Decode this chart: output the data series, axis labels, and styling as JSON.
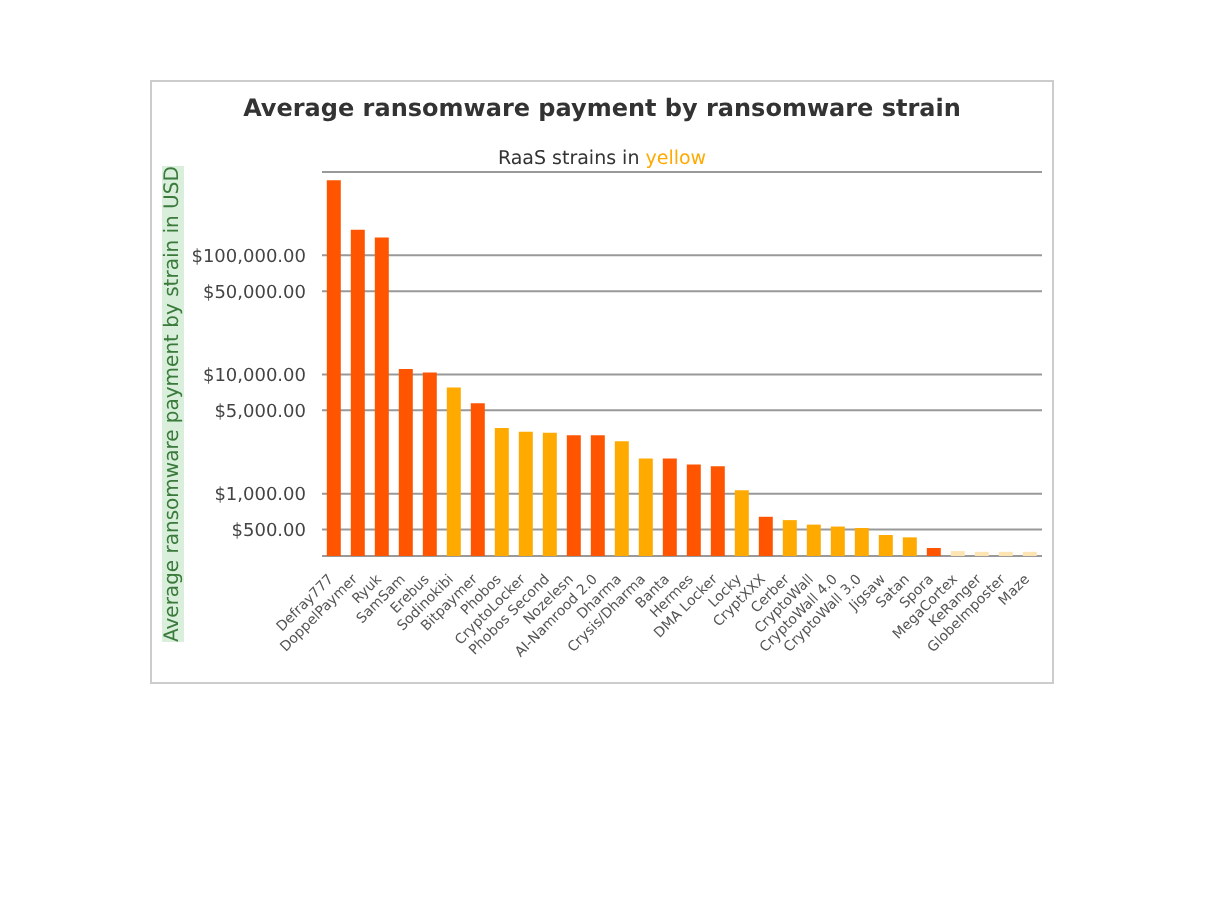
{
  "chart_data": {
    "type": "bar",
    "title": "Average ransomware payment by ransomware strain",
    "subtitle": "RaaS strains in yellow",
    "ylabel": "Average ransomware payment by strain in USD",
    "categories": [
      "Defray777",
      "DoppelPaymer",
      "Ryuk",
      "SamSam",
      "Erebus",
      "Sodinokibi",
      "Bitpaymer",
      "Phobos",
      "CryptoLocker",
      "Phobos Second",
      "Nozelesn",
      "AI-Namrood 2.0",
      "Dharma",
      "Crysis/Dharma",
      "Banta",
      "Hermes",
      "DMA Locker",
      "Locky",
      "CryptXXX",
      "Cerber",
      "CryptoWall",
      "CryptoWall 4.0",
      "CryptoWall 3.0",
      "Jigsaw",
      "Satan",
      "Spora",
      "MegaCortex",
      "KeRanger",
      "GlobeImposter",
      "Maze"
    ],
    "values": [
      427000,
      164000,
      141000,
      11100,
      10400,
      7760,
      5750,
      3550,
      3310,
      3240,
      3090,
      3090,
      2750,
      1970,
      1970,
      1760,
      1700,
      1070,
      640,
      600,
      550,
      530,
      515,
      450,
      430,
      350,
      330,
      325,
      325,
      325
    ],
    "colors": [
      "#ff5500",
      "#ff5500",
      "#ff5500",
      "#ff5500",
      "#ff5500",
      "#ffaa00",
      "#ff5500",
      "#ffaa00",
      "#ffaa00",
      "#ffaa00",
      "#ff5500",
      "#ff5500",
      "#ffaa00",
      "#ffaa00",
      "#ff5500",
      "#ff5500",
      "#ff5500",
      "#ffaa00",
      "#ff5500",
      "#ffaa00",
      "#ffaa00",
      "#ffaa00",
      "#ffaa00",
      "#ffaa00",
      "#ffaa00",
      "#ff5500",
      "#ffe4b3",
      "#ffe4b3",
      "#ffe4b3",
      "#ffe4b3"
    ],
    "log": "y",
    "ylim": [
      300,
      500000
    ],
    "yticks": [
      {
        "value": 500,
        "label": "$500.00"
      },
      {
        "value": 1000,
        "label": "$1,000.00"
      },
      {
        "value": 5000,
        "label": "$5,000.00"
      },
      {
        "value": 10000,
        "label": "$10,000.00"
      },
      {
        "value": 50000,
        "label": "$50,000.00"
      },
      {
        "value": 100000,
        "label": "$100,000.00"
      }
    ],
    "grid": "y"
  }
}
